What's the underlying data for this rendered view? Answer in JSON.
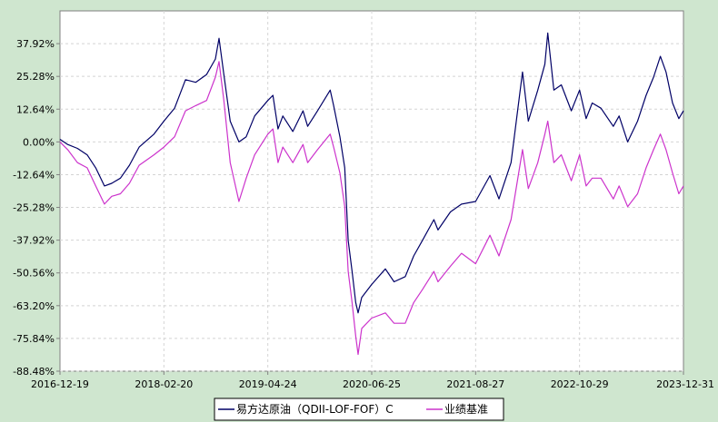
{
  "chart_data": {
    "type": "line",
    "title": "",
    "xlabel": "",
    "ylabel": "",
    "x_tick_labels": [
      "2016-12-19",
      "2018-02-20",
      "2019-04-24",
      "2020-06-25",
      "2021-08-27",
      "2022-10-29",
      "2023-12-31"
    ],
    "y_tick_labels": [
      "37.92%",
      "25.28%",
      "12.64%",
      "0.00%",
      "-12.64%",
      "-25.28%",
      "-37.92%",
      "-50.56%",
      "-63.20%",
      "-75.84%",
      "-88.48%"
    ],
    "ylim": [
      -88.48,
      50.56
    ],
    "xlim": [
      "2016-12-19",
      "2023-12-31"
    ],
    "grid": true,
    "legend_position": "bottom",
    "colors": {
      "background": "#cfe6cf",
      "plot": "#ffffff",
      "fund": "#000066",
      "benchmark": "#cc33cc"
    },
    "series": [
      {
        "name": "易方达原油（QDII-LOF-FOF）C",
        "color": "#000066",
        "points": [
          [
            "2016-12-19",
            1.0
          ],
          [
            "2017-01-20",
            -1.0
          ],
          [
            "2017-03-01",
            -2.5
          ],
          [
            "2017-04-10",
            -5.0
          ],
          [
            "2017-05-15",
            -10.0
          ],
          [
            "2017-06-20",
            -17.0
          ],
          [
            "2017-07-20",
            -16.0
          ],
          [
            "2017-08-25",
            -14.0
          ],
          [
            "2017-10-01",
            -9.0
          ],
          [
            "2017-11-10",
            -2.0
          ],
          [
            "2018-01-10",
            3.0
          ],
          [
            "2018-02-20",
            8.0
          ],
          [
            "2018-04-05",
            13.0
          ],
          [
            "2018-05-20",
            24.0
          ],
          [
            "2018-07-01",
            23.0
          ],
          [
            "2018-08-15",
            26.0
          ],
          [
            "2018-09-20",
            32.0
          ],
          [
            "2018-10-05",
            40.0
          ],
          [
            "2018-10-25",
            26.0
          ],
          [
            "2018-11-20",
            8.0
          ],
          [
            "2018-12-26",
            0.0
          ],
          [
            "2019-01-25",
            2.0
          ],
          [
            "2019-03-01",
            10.0
          ],
          [
            "2019-04-24",
            16.0
          ],
          [
            "2019-05-15",
            18.0
          ],
          [
            "2019-06-05",
            5.0
          ],
          [
            "2019-06-25",
            10.0
          ],
          [
            "2019-08-05",
            4.0
          ],
          [
            "2019-09-16",
            12.0
          ],
          [
            "2019-10-05",
            6.0
          ],
          [
            "2019-11-15",
            12.0
          ],
          [
            "2020-01-06",
            20.0
          ],
          [
            "2020-01-20",
            14.0
          ],
          [
            "2020-02-15",
            2.0
          ],
          [
            "2020-03-06",
            -10.0
          ],
          [
            "2020-03-20",
            -38.0
          ],
          [
            "2020-04-05",
            -50.0
          ],
          [
            "2020-04-20",
            -62.0
          ],
          [
            "2020-04-30",
            -66.0
          ],
          [
            "2020-05-15",
            -60.0
          ],
          [
            "2020-06-25",
            -55.0
          ],
          [
            "2020-08-20",
            -49.0
          ],
          [
            "2020-09-25",
            -54.0
          ],
          [
            "2020-11-10",
            -52.0
          ],
          [
            "2020-12-15",
            -44.0
          ],
          [
            "2021-01-20",
            -38.0
          ],
          [
            "2021-03-08",
            -30.0
          ],
          [
            "2021-03-25",
            -34.0
          ],
          [
            "2021-05-15",
            -27.0
          ],
          [
            "2021-06-30",
            -24.0
          ],
          [
            "2021-08-27",
            -23.0
          ],
          [
            "2021-10-25",
            -13.0
          ],
          [
            "2021-12-01",
            -22.0
          ],
          [
            "2022-01-20",
            -8.0
          ],
          [
            "2022-03-08",
            27.0
          ],
          [
            "2022-04-01",
            8.0
          ],
          [
            "2022-05-10",
            20.0
          ],
          [
            "2022-06-08",
            30.0
          ],
          [
            "2022-06-20",
            42.0
          ],
          [
            "2022-07-15",
            20.0
          ],
          [
            "2022-08-15",
            22.0
          ],
          [
            "2022-09-25",
            12.0
          ],
          [
            "2022-10-29",
            20.0
          ],
          [
            "2022-11-25",
            9.0
          ],
          [
            "2022-12-20",
            15.0
          ],
          [
            "2023-01-25",
            13.0
          ],
          [
            "2023-03-17",
            6.0
          ],
          [
            "2023-04-10",
            10.0
          ],
          [
            "2023-05-15",
            0.0
          ],
          [
            "2023-06-25",
            8.0
          ],
          [
            "2023-07-30",
            18.0
          ],
          [
            "2023-08-30",
            25.0
          ],
          [
            "2023-09-27",
            33.0
          ],
          [
            "2023-10-20",
            27.0
          ],
          [
            "2023-11-16",
            15.0
          ],
          [
            "2023-12-12",
            9.0
          ],
          [
            "2023-12-31",
            12.0
          ]
        ]
      },
      {
        "name": "业绩基准",
        "color": "#cc33cc",
        "points": [
          [
            "2016-12-19",
            0.0
          ],
          [
            "2017-01-20",
            -3.0
          ],
          [
            "2017-03-01",
            -8.0
          ],
          [
            "2017-04-10",
            -10.0
          ],
          [
            "2017-05-15",
            -17.0
          ],
          [
            "2017-06-20",
            -24.0
          ],
          [
            "2017-07-20",
            -21.0
          ],
          [
            "2017-08-25",
            -20.0
          ],
          [
            "2017-10-01",
            -16.0
          ],
          [
            "2017-11-10",
            -9.0
          ],
          [
            "2018-01-10",
            -5.0
          ],
          [
            "2018-02-20",
            -2.0
          ],
          [
            "2018-04-05",
            2.0
          ],
          [
            "2018-05-20",
            12.0
          ],
          [
            "2018-07-01",
            14.0
          ],
          [
            "2018-08-15",
            16.0
          ],
          [
            "2018-09-20",
            25.0
          ],
          [
            "2018-10-05",
            31.0
          ],
          [
            "2018-10-25",
            16.0
          ],
          [
            "2018-11-20",
            -8.0
          ],
          [
            "2018-12-26",
            -23.0
          ],
          [
            "2019-01-25",
            -14.0
          ],
          [
            "2019-03-01",
            -5.0
          ],
          [
            "2019-04-24",
            3.0
          ],
          [
            "2019-05-15",
            5.0
          ],
          [
            "2019-06-05",
            -8.0
          ],
          [
            "2019-06-25",
            -2.0
          ],
          [
            "2019-08-05",
            -8.0
          ],
          [
            "2019-09-16",
            -1.0
          ],
          [
            "2019-10-05",
            -8.0
          ],
          [
            "2019-11-15",
            -3.0
          ],
          [
            "2020-01-06",
            3.0
          ],
          [
            "2020-01-20",
            -2.0
          ],
          [
            "2020-02-15",
            -12.0
          ],
          [
            "2020-03-06",
            -25.0
          ],
          [
            "2020-03-20",
            -50.0
          ],
          [
            "2020-04-05",
            -62.0
          ],
          [
            "2020-04-20",
            -75.0
          ],
          [
            "2020-04-30",
            -82.0
          ],
          [
            "2020-05-15",
            -72.0
          ],
          [
            "2020-06-25",
            -68.0
          ],
          [
            "2020-08-20",
            -66.0
          ],
          [
            "2020-09-25",
            -70.0
          ],
          [
            "2020-11-10",
            -70.0
          ],
          [
            "2020-12-15",
            -62.0
          ],
          [
            "2021-01-20",
            -57.0
          ],
          [
            "2021-03-08",
            -50.0
          ],
          [
            "2021-03-25",
            -54.0
          ],
          [
            "2021-05-15",
            -48.0
          ],
          [
            "2021-06-30",
            -43.0
          ],
          [
            "2021-08-27",
            -47.0
          ],
          [
            "2021-10-25",
            -36.0
          ],
          [
            "2021-12-01",
            -44.0
          ],
          [
            "2022-01-20",
            -30.0
          ],
          [
            "2022-03-08",
            -3.0
          ],
          [
            "2022-04-01",
            -18.0
          ],
          [
            "2022-05-10",
            -8.0
          ],
          [
            "2022-06-08",
            3.0
          ],
          [
            "2022-06-20",
            8.0
          ],
          [
            "2022-07-15",
            -8.0
          ],
          [
            "2022-08-15",
            -5.0
          ],
          [
            "2022-09-25",
            -15.0
          ],
          [
            "2022-10-29",
            -5.0
          ],
          [
            "2022-11-25",
            -17.0
          ],
          [
            "2022-12-20",
            -14.0
          ],
          [
            "2023-01-25",
            -14.0
          ],
          [
            "2023-03-17",
            -22.0
          ],
          [
            "2023-04-10",
            -17.0
          ],
          [
            "2023-05-15",
            -25.0
          ],
          [
            "2023-06-25",
            -20.0
          ],
          [
            "2023-07-30",
            -10.0
          ],
          [
            "2023-08-30",
            -3.0
          ],
          [
            "2023-09-27",
            3.0
          ],
          [
            "2023-10-20",
            -3.0
          ],
          [
            "2023-11-16",
            -12.0
          ],
          [
            "2023-12-12",
            -20.0
          ],
          [
            "2023-12-31",
            -17.0
          ]
        ]
      }
    ]
  }
}
